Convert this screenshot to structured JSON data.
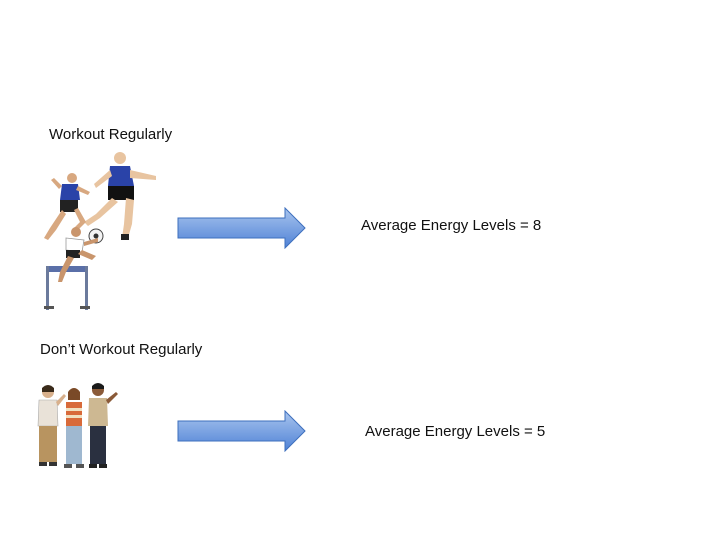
{
  "rows": [
    {
      "group_label": "Workout Regularly",
      "picture_icon": "athletes-icon",
      "arrow_icon": "right-arrow-icon",
      "result_text": "Average Energy Levels = 8"
    },
    {
      "group_label": "Don’t Workout Regularly",
      "picture_icon": "people-standing-icon",
      "arrow_icon": "right-arrow-icon",
      "result_text": "Average Energy Levels = 5"
    }
  ],
  "colors": {
    "arrow_fill_top": "#a9c5ee",
    "arrow_fill_bottom": "#4f82d6",
    "arrow_stroke": "#3d6fbd",
    "jersey_blue": "#2a43a8",
    "hurdle_blue": "#5a6fa8"
  }
}
